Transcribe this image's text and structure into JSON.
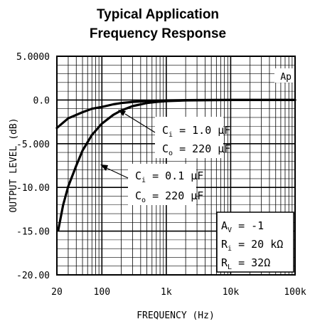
{
  "chart_data": {
    "type": "line",
    "title_lines": [
      "Typical Application",
      "Frequency Response"
    ],
    "xlabel": "FREQUENCY (Hz)",
    "ylabel": "OUTPUT LEVEL (dB)",
    "x_scale": "log",
    "xlim": [
      20,
      100000
    ],
    "ylim": [
      -20,
      5
    ],
    "x_ticks": [
      {
        "value": 20,
        "label": "20"
      },
      {
        "value": 100,
        "label": "100"
      },
      {
        "value": 1000,
        "label": "1k"
      },
      {
        "value": 10000,
        "label": "10k"
      },
      {
        "value": 100000,
        "label": "100k"
      }
    ],
    "y_ticks": [
      {
        "value": 5,
        "label": "5.0000"
      },
      {
        "value": 0,
        "label": "0.0"
      },
      {
        "value": -5,
        "label": "-5.000"
      },
      {
        "value": -10,
        "label": "-10.00"
      },
      {
        "value": -15,
        "label": "-15.00"
      },
      {
        "value": -20,
        "label": "-20.00"
      }
    ],
    "grid": true,
    "series": [
      {
        "name": "Ci = 1.0 µF, Co = 220 µF",
        "x": [
          20,
          30,
          50,
          70,
          100,
          150,
          200,
          300,
          500,
          1000,
          2000,
          5000,
          10000,
          20000,
          50000,
          100000
        ],
        "y": [
          -3.2,
          -2.1,
          -1.4,
          -1.0,
          -0.8,
          -0.5,
          -0.35,
          -0.22,
          -0.12,
          -0.05,
          -0.02,
          0,
          0,
          0,
          0,
          0
        ]
      },
      {
        "name": "Ci = 0.1 µF, Co = 220 µF",
        "x": [
          21,
          25,
          30,
          40,
          50,
          70,
          100,
          150,
          200,
          300,
          500,
          700,
          1000,
          2000,
          5000,
          10000,
          20000,
          50000,
          100000
        ],
        "y": [
          -14.9,
          -12.0,
          -9.9,
          -7.5,
          -5.8,
          -4.0,
          -2.7,
          -1.7,
          -1.2,
          -0.7,
          -0.35,
          -0.22,
          -0.13,
          -0.05,
          -0.02,
          0,
          0,
          0,
          0
        ]
      }
    ],
    "annotations": {
      "corner_label": "Ap",
      "curve1": {
        "line1_main": "C",
        "line1_sub": "i",
        "line1_rest": " = 1.0 µF",
        "line2_main": "C",
        "line2_sub": "o",
        "line2_rest": " = 220 µF"
      },
      "curve2": {
        "line1_main": "C",
        "line1_sub": "i",
        "line1_rest": " = 0.1 µF",
        "line2_main": "C",
        "line2_sub": "o",
        "line2_rest": " = 220 µF"
      },
      "conditions": [
        {
          "main": "A",
          "sub": "V",
          "rest": " = -1"
        },
        {
          "main": "R",
          "sub": "i",
          "rest": " = 20 kΩ"
        },
        {
          "main": "R",
          "sub": "L",
          "rest": " = 32Ω"
        }
      ]
    }
  }
}
